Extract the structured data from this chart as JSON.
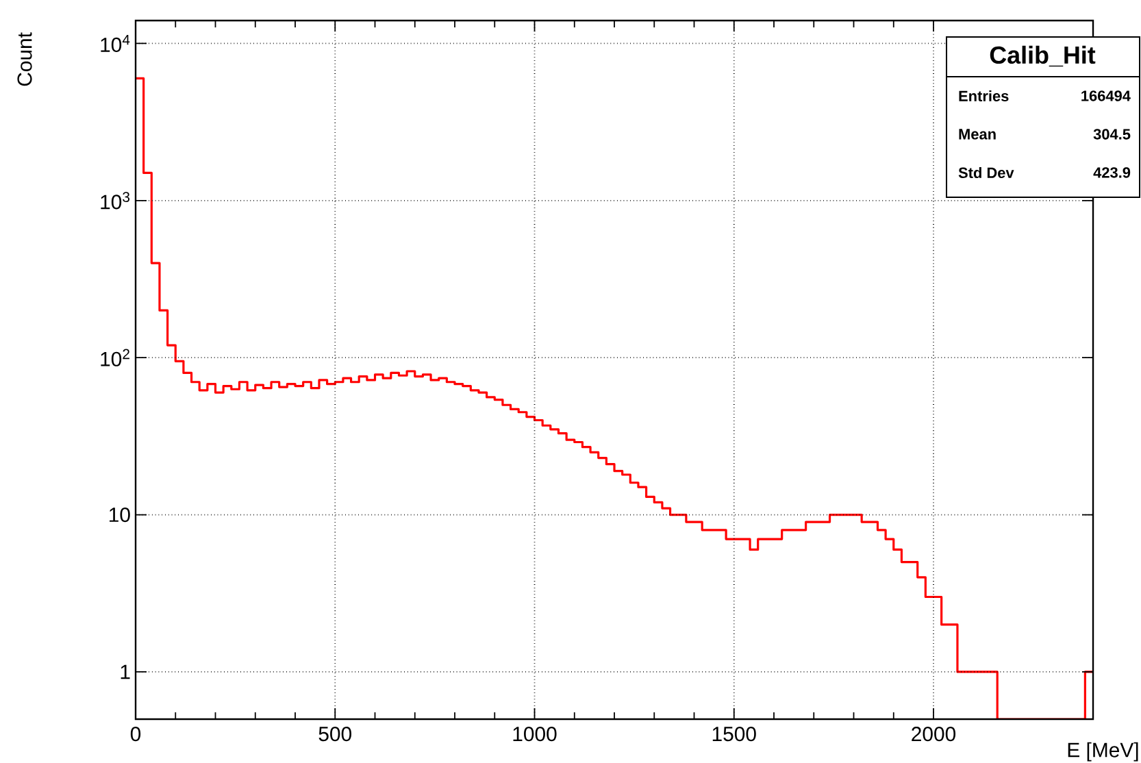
{
  "chart_data": {
    "type": "histogram",
    "title": "Calib_Hit",
    "xlabel": "E [MeV]",
    "ylabel": "Count",
    "annotations": [
      "Entries",
      "166494",
      "Mean",
      "304.5",
      "Std Dev",
      "423.9"
    ],
    "bins": [
      0,
      20,
      40,
      60,
      80,
      100,
      120,
      140,
      160,
      180,
      200,
      220,
      240,
      260,
      280,
      300,
      320,
      340,
      360,
      380,
      400,
      420,
      440,
      460,
      480,
      500,
      520,
      540,
      560,
      580,
      600,
      620,
      640,
      660,
      680,
      700,
      720,
      740,
      760,
      780,
      800,
      820,
      840,
      860,
      880,
      900,
      920,
      940,
      960,
      980,
      1000,
      1020,
      1040,
      1060,
      1080,
      1100,
      1120,
      1140,
      1160,
      1180,
      1200,
      1220,
      1240,
      1260,
      1280,
      1300,
      1320,
      1340,
      1360,
      1380,
      1400,
      1420,
      1440,
      1460,
      1480,
      1500,
      1520,
      1540,
      1560,
      1580,
      1600,
      1620,
      1640,
      1660,
      1680,
      1700,
      1720,
      1740,
      1760,
      1780,
      1800,
      1820,
      1840,
      1860,
      1880,
      1900,
      1920,
      1940,
      1960,
      1980,
      2000,
      2020,
      2040,
      2060,
      2080,
      2100,
      2120,
      2140,
      2160,
      2180,
      2200,
      2220,
      2240,
      2260,
      2280,
      2300,
      2320,
      2340,
      2360,
      2380,
      2400
    ],
    "values": [
      6000,
      1500,
      400,
      200,
      120,
      95,
      80,
      70,
      62,
      68,
      60,
      66,
      63,
      70,
      62,
      67,
      64,
      70,
      65,
      68,
      66,
      70,
      64,
      72,
      68,
      70,
      74,
      70,
      76,
      72,
      78,
      74,
      80,
      77,
      82,
      76,
      78,
      72,
      74,
      70,
      68,
      66,
      62,
      60,
      56,
      54,
      50,
      47,
      45,
      42,
      40,
      37,
      35,
      33,
      30,
      29,
      27,
      25,
      23,
      21,
      19,
      18,
      16,
      15,
      13,
      12,
      11,
      10,
      10,
      9,
      9,
      8,
      8,
      8,
      7,
      7,
      7,
      6,
      7,
      7,
      7,
      8,
      8,
      8,
      9,
      9,
      9,
      10,
      10,
      10,
      10,
      9,
      9,
      8,
      7,
      6,
      5,
      5,
      4,
      3,
      3,
      2,
      2,
      1,
      1,
      1,
      1,
      1,
      null,
      null,
      null,
      null,
      null,
      null,
      null,
      null,
      null,
      null,
      null,
      1
    ],
    "color": "#ff0000",
    "log": "y",
    "grid": true,
    "xlim": [
      0,
      2400
    ],
    "ylim": [
      0.5,
      14000
    ],
    "xticks": [
      0,
      500,
      1000,
      1500,
      2000
    ],
    "yticks": [
      1,
      10,
      {
        "value": 100,
        "label": "10$^{2}$"
      },
      {
        "value": 1000,
        "label": "10$^{3}$"
      },
      {
        "value": 10000,
        "label": "10$^{4}$"
      }
    ]
  }
}
